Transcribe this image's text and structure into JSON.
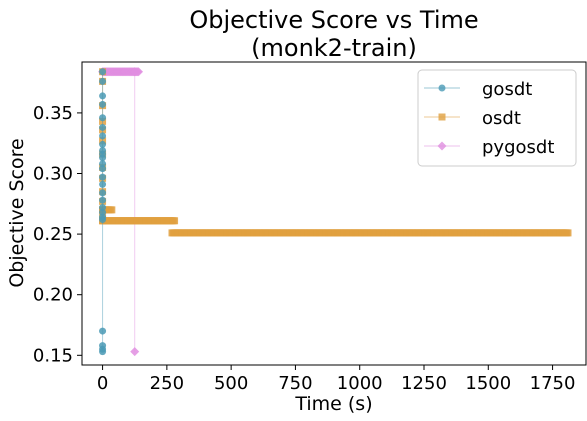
{
  "chart_data": {
    "type": "scatter",
    "title_line1": "Objective Score vs Time",
    "title_line2": "(monk2-train)",
    "xlabel": "Time (s)",
    "ylabel": "Objective Score",
    "xlim": [
      -80,
      1880
    ],
    "ylim": [
      0.142,
      0.392
    ],
    "x_ticks": [
      0,
      250,
      500,
      750,
      1000,
      1250,
      1500,
      1750
    ],
    "x_tick_labels": [
      "0",
      "250",
      "500",
      "750",
      "1000",
      "1250",
      "1500",
      "1750"
    ],
    "y_ticks": [
      0.15,
      0.2,
      0.25,
      0.3,
      0.35
    ],
    "y_tick_labels": [
      "0.15",
      "0.20",
      "0.25",
      "0.30",
      "0.35"
    ],
    "grid": false,
    "legend_position": "top-right",
    "series": [
      {
        "name": "gosdt",
        "color": "#4a9ab5",
        "marker": "circle",
        "points": [
          [
            0,
            0.384
          ],
          [
            0,
            0.376
          ],
          [
            0,
            0.364
          ],
          [
            0,
            0.357
          ],
          [
            0,
            0.346
          ],
          [
            0,
            0.338
          ],
          [
            0,
            0.331
          ],
          [
            0,
            0.324
          ],
          [
            0,
            0.319
          ],
          [
            0,
            0.316
          ],
          [
            0,
            0.313
          ],
          [
            0,
            0.308
          ],
          [
            0,
            0.304
          ],
          [
            0,
            0.297
          ],
          [
            0,
            0.291
          ],
          [
            0,
            0.284
          ],
          [
            0,
            0.278
          ],
          [
            0,
            0.272
          ],
          [
            0,
            0.268
          ],
          [
            0,
            0.264
          ],
          [
            0,
            0.262
          ],
          [
            0,
            0.17
          ],
          [
            0,
            0.158
          ],
          [
            0,
            0.155
          ],
          [
            0,
            0.153
          ]
        ]
      },
      {
        "name": "osdt",
        "color": "#e0a040",
        "marker": "square",
        "segments": [
          {
            "x_start": 0,
            "x_end": 40,
            "y": 0.27,
            "step": 6
          },
          {
            "x_start": 0,
            "x_end": 280,
            "y": 0.261,
            "step": 5
          },
          {
            "x_start": 270,
            "x_end": 1810,
            "y": 0.251,
            "step": 5
          }
        ],
        "points": [
          [
            0,
            0.384
          ],
          [
            0,
            0.376
          ],
          [
            0,
            0.356
          ],
          [
            0,
            0.343
          ],
          [
            0,
            0.336
          ],
          [
            0,
            0.327
          ],
          [
            0,
            0.316
          ],
          [
            0,
            0.305
          ],
          [
            0,
            0.296
          ],
          [
            0,
            0.285
          ],
          [
            0,
            0.277
          ],
          [
            0,
            0.27
          ],
          [
            0,
            0.266
          ],
          [
            0,
            0.261
          ]
        ]
      },
      {
        "name": "pygosdt",
        "color": "#e08ee0",
        "marker": "diamond",
        "segments": [
          {
            "x_start": 0,
            "x_end": 140,
            "y": 0.384,
            "step": 4
          }
        ],
        "points": [
          [
            125,
            0.384
          ],
          [
            125,
            0.153
          ]
        ]
      }
    ]
  }
}
